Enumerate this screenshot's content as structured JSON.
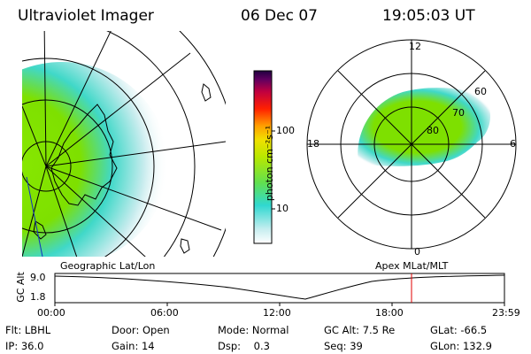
{
  "header": {
    "instrument": "Ultraviolet Imager",
    "date": "06 Dec 07",
    "time": "19:05:03 UT"
  },
  "colorbar": {
    "unit": "photon cm⁻²s⁻¹",
    "ticks": [
      "100",
      "10"
    ]
  },
  "polar_plot": {
    "mlt_labels": [
      "12",
      "18",
      "6",
      "0"
    ],
    "lat_labels": [
      "60",
      "70",
      "80"
    ],
    "caption": "Apex MLat/MLT"
  },
  "geo_plot": {
    "caption": "Geographic Lat/Lon"
  },
  "altitude_strip": {
    "ylabel": "GC Alt",
    "ymax_label": "9.0",
    "ymin_label": "1.8",
    "time_ticks": [
      "00:00",
      "06:00",
      "12:00",
      "18:00",
      "23:59"
    ],
    "marker_time": "19:05"
  },
  "info": {
    "row1": [
      {
        "label": "Flt:",
        "value": "LBHL"
      },
      {
        "label": "Door:",
        "value": "Open"
      },
      {
        "label": "Mode:",
        "value": "Normal"
      },
      {
        "label": "GC Alt:",
        "value": "7.5 Re"
      },
      {
        "label": "GLat:",
        "value": "-66.5"
      }
    ],
    "row2": [
      {
        "label": "IP:",
        "value": "36.0"
      },
      {
        "label": "Gain:",
        "value": "14"
      },
      {
        "label": "Dsp:",
        "value": "0.3"
      },
      {
        "label": "Seq:",
        "value": "39"
      },
      {
        "label": "GLon:",
        "value": "132.9"
      }
    ]
  },
  "colors": {
    "green": "#7ee000",
    "cyan": "#40d8d0",
    "pale": "#cfeff0",
    "marker": "#e00000"
  }
}
